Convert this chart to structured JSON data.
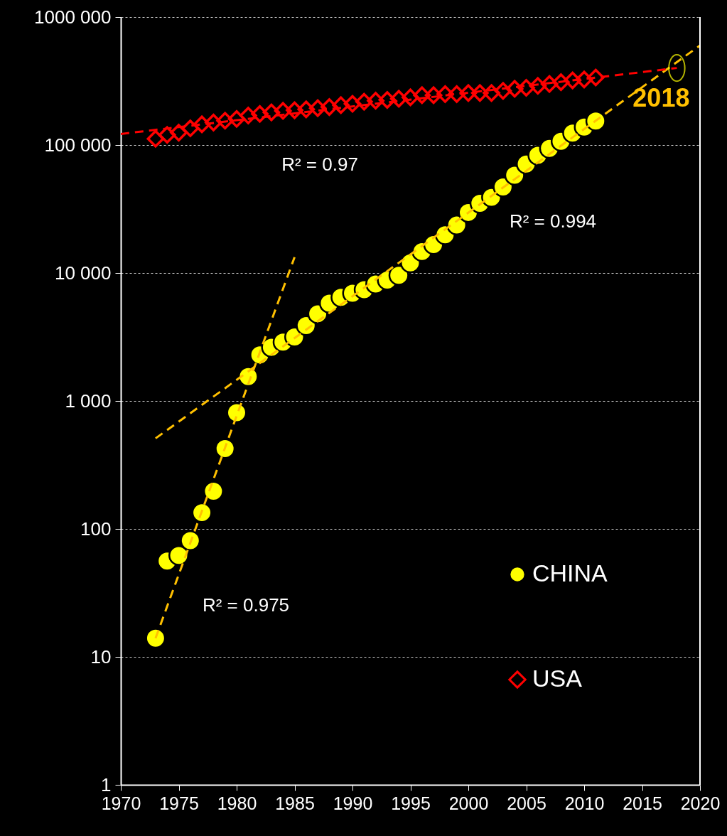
{
  "chart_data": {
    "type": "scatter",
    "x": [
      1973,
      1974,
      1975,
      1976,
      1977,
      1978,
      1979,
      1980,
      1981,
      1982,
      1983,
      1984,
      1985,
      1986,
      1987,
      1988,
      1989,
      1990,
      1991,
      1992,
      1993,
      1994,
      1995,
      1996,
      1997,
      1998,
      1999,
      2000,
      2001,
      2002,
      2003,
      2004,
      2005,
      2006,
      2007,
      2008,
      2009,
      2010,
      2011
    ],
    "series": [
      {
        "name": "CHINA",
        "marker": "circle",
        "color": "#ffff00",
        "values": [
          14,
          56,
          62,
          81,
          134,
          197,
          424,
          809,
          1550,
          2290,
          2630,
          2880,
          3160,
          3880,
          4800,
          5800,
          6450,
          6950,
          7400,
          8200,
          8800,
          9600,
          12000,
          14700,
          16700,
          19900,
          23700,
          29700,
          35000,
          39000,
          47000,
          58000,
          71000,
          83000,
          94000,
          107000,
          124000,
          138000,
          154000
        ]
      },
      {
        "name": "USA",
        "marker": "diamond",
        "color": "#ff0000",
        "values": [
          112000,
          120000,
          125000,
          135000,
          145000,
          150000,
          155000,
          160000,
          170000,
          175000,
          180000,
          185000,
          187000,
          190000,
          194000,
          198000,
          205000,
          210000,
          218000,
          222000,
          225000,
          230000,
          236000,
          245000,
          245000,
          250000,
          250000,
          255000,
          255000,
          255000,
          265000,
          275000,
          280000,
          290000,
          300000,
          310000,
          320000,
          325000,
          337000
        ]
      },
      {
        "type": "line",
        "line_style": "dashed",
        "color": "#ffc000",
        "x": [
          1973,
          1985
        ],
        "values": [
          14,
          13300
        ]
      },
      {
        "type": "line",
        "line_style": "dashed",
        "color": "#ffc000",
        "x": [
          1973,
          2020
        ],
        "values": [
          510,
          600000
        ]
      },
      {
        "type": "line",
        "line_style": "dashed",
        "color": "#ff0000",
        "x": [
          1970,
          2018
        ],
        "values": [
          122000,
          400000
        ]
      }
    ],
    "xlim": [
      1970,
      2020
    ],
    "xticks": [
      1970,
      1975,
      1980,
      1985,
      1990,
      1995,
      2000,
      2005,
      2010,
      2015,
      2020
    ],
    "ylim": [
      1,
      1000000
    ],
    "yticks": [
      1,
      10,
      100,
      {
        "value": 1000,
        "label": "1 000"
      },
      {
        "value": 10000,
        "label": "10 000"
      },
      {
        "value": 100000,
        "label": "100 000"
      },
      {
        "value": 1000000,
        "label": "1000 000"
      }
    ],
    "log": true,
    "grid": "y",
    "legend": "bottom right",
    "annotations": [
      "R² = 0.97",
      "R² = 0.994",
      "R² = 0.975",
      {
        "text": "2018",
        "x": 2018,
        "y": 400000
      }
    ]
  }
}
